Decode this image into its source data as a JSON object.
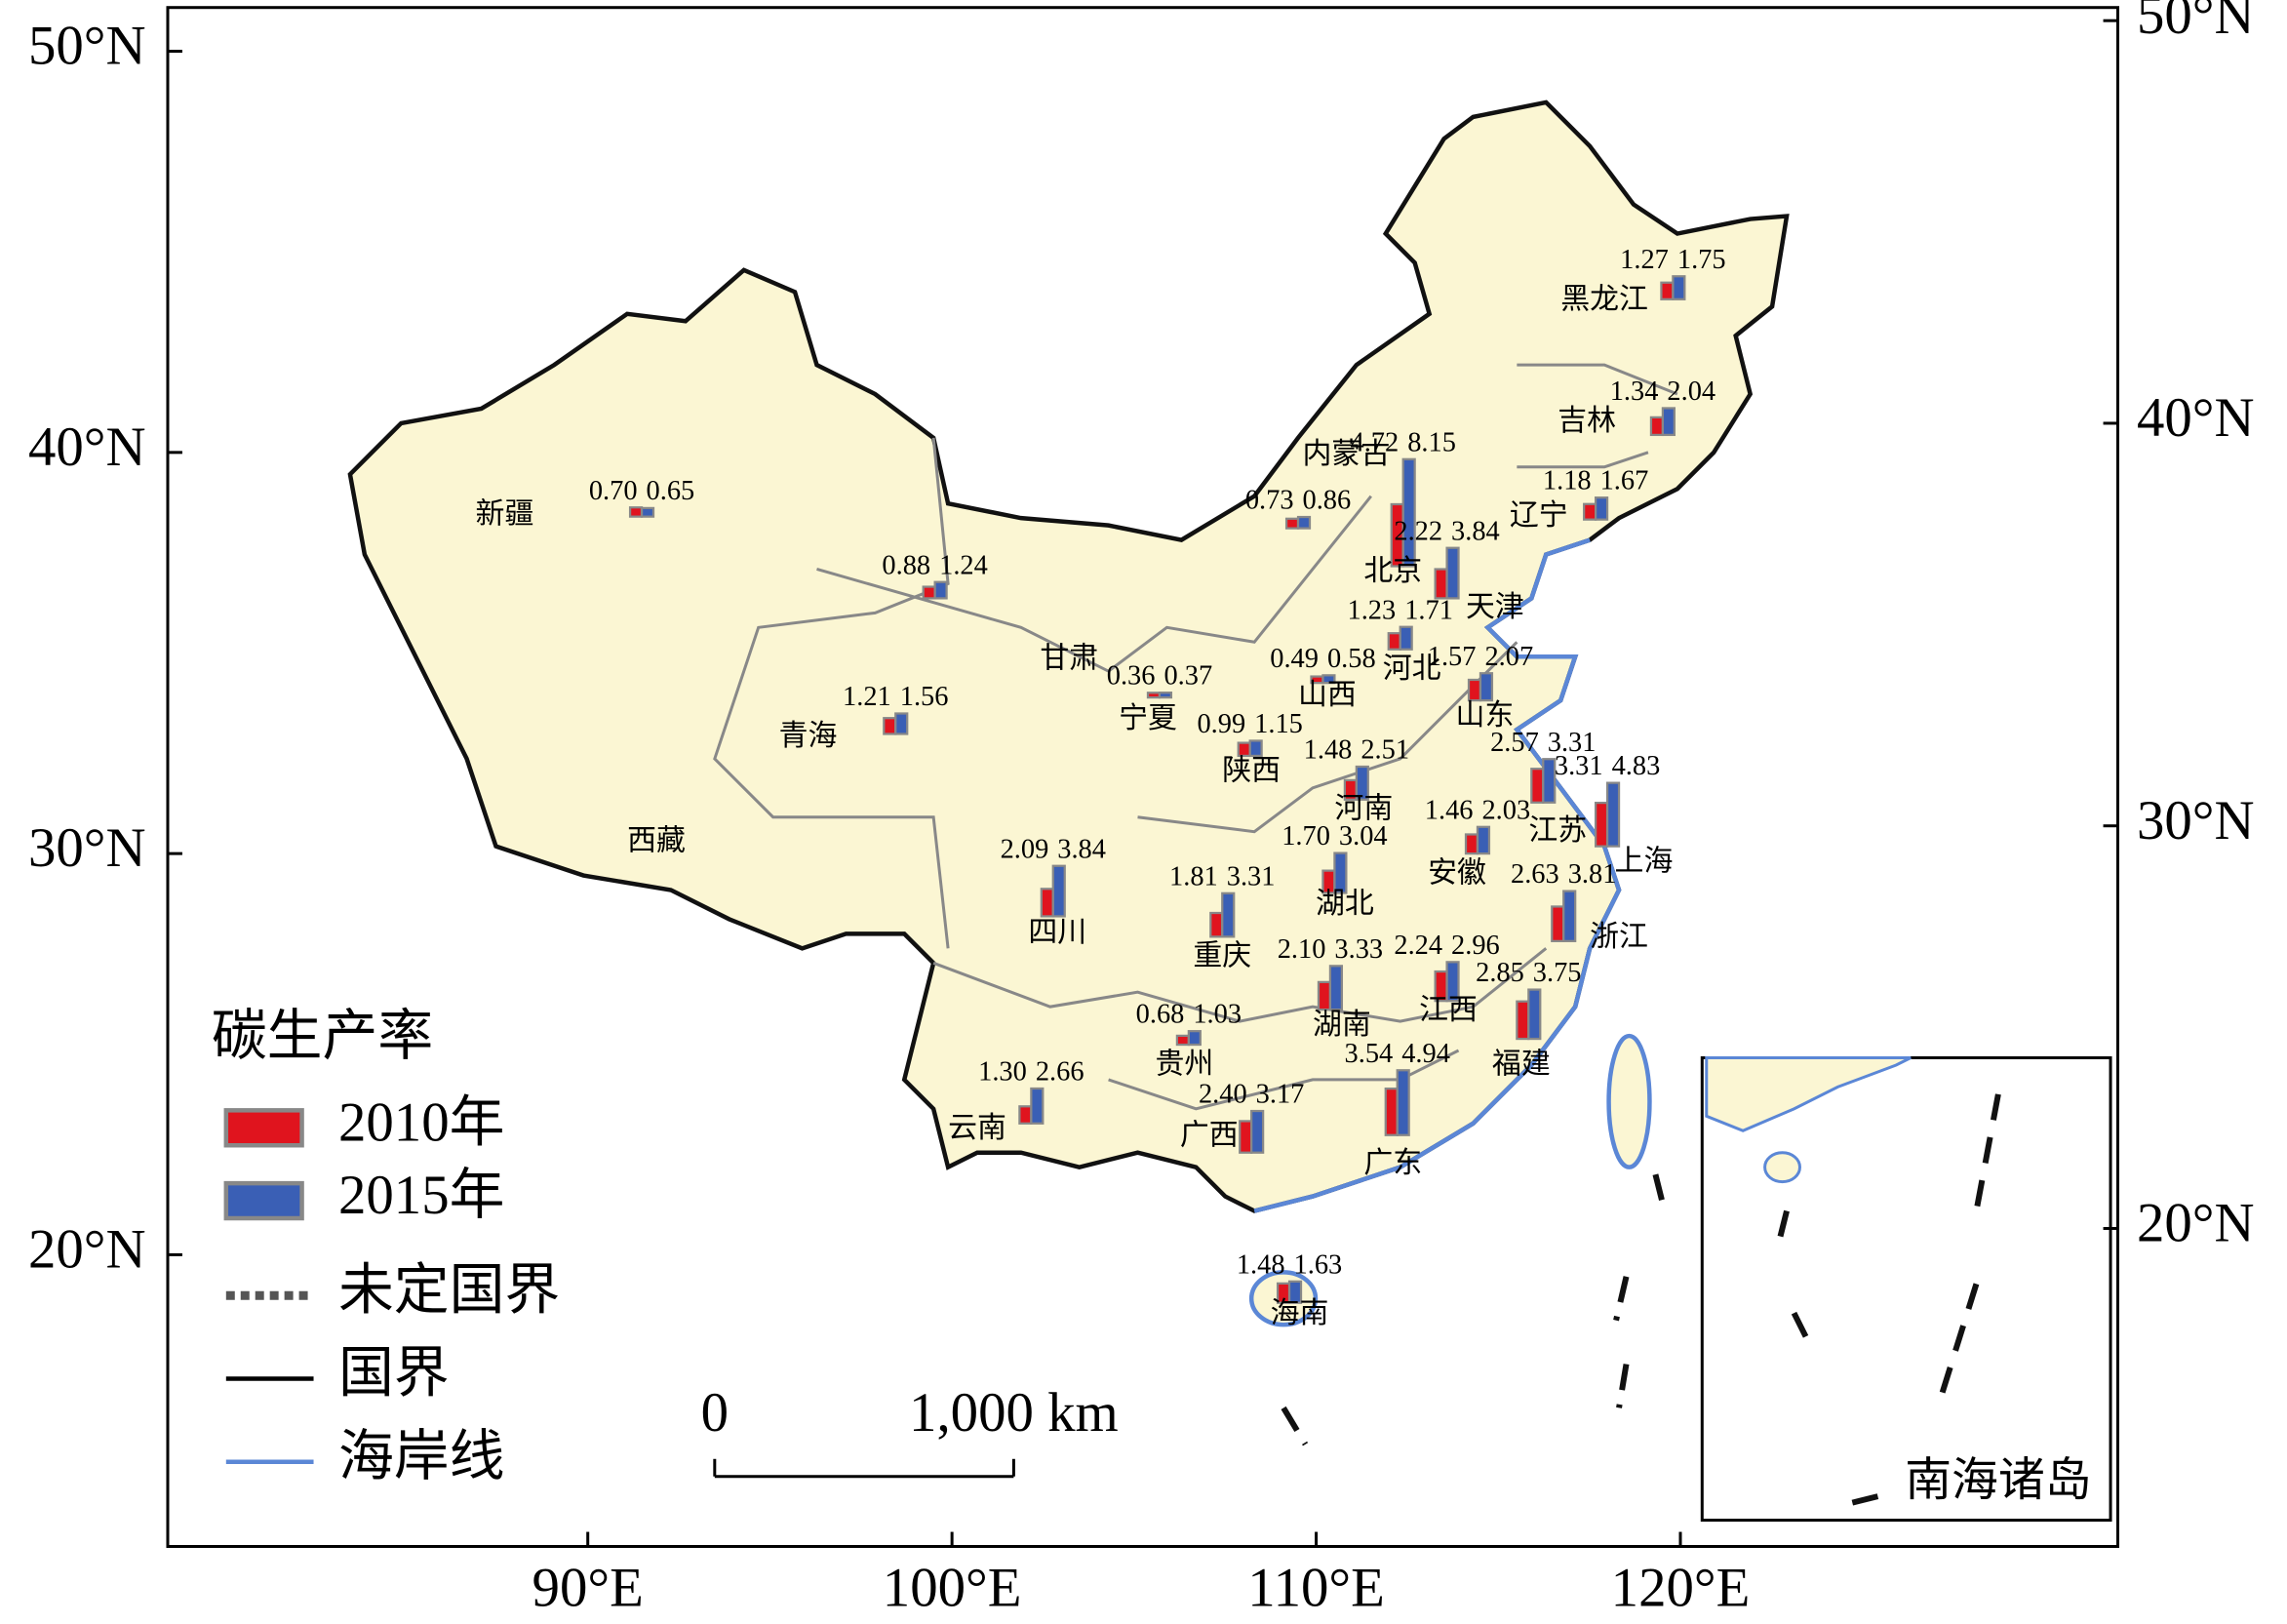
{
  "chart_data": {
    "type": "bar",
    "title": "碳生产率",
    "categories": [
      "黑龙江",
      "吉林",
      "辽宁",
      "内蒙古",
      "北京",
      "天津",
      "河北",
      "山西",
      "山东",
      "宁夏",
      "陕西",
      "甘肃",
      "新疆",
      "青海",
      "西藏",
      "河南",
      "江苏",
      "上海",
      "安徽",
      "湖北",
      "浙江",
      "四川",
      "重庆",
      "湖南",
      "江西",
      "福建",
      "贵州",
      "云南",
      "广西",
      "广东",
      "海南"
    ],
    "series": [
      {
        "name": "2010年",
        "color": "#e0141e",
        "values": [
          1.27,
          1.34,
          1.18,
          0.73,
          4.72,
          2.22,
          1.23,
          0.49,
          1.57,
          0.36,
          0.99,
          0.88,
          0.7,
          1.21,
          null,
          1.48,
          2.57,
          3.31,
          1.46,
          1.7,
          2.63,
          2.09,
          1.81,
          2.1,
          2.24,
          2.85,
          0.68,
          1.3,
          2.4,
          3.54,
          1.48
        ],
        "value_labels": [
          "1.27",
          "1.34",
          "1.18",
          "0.73",
          "4.72",
          "2.22",
          "1.23",
          "0.49",
          "1.57",
          "0.36",
          "0.99",
          "0.88",
          "0.70",
          "1.21",
          null,
          "1.48",
          "2.57",
          "3.31",
          "1.46",
          "1.70",
          "2.63",
          "2.09",
          "1.81",
          "2.10",
          "2.24",
          "2.85",
          "0.68",
          "1.30",
          "2.40",
          "3.54",
          "1.48"
        ]
      },
      {
        "name": "2015年",
        "color": "#3a5fb5",
        "values": [
          1.75,
          2.04,
          1.67,
          0.86,
          8.15,
          3.84,
          1.71,
          0.58,
          2.07,
          0.37,
          1.15,
          1.24,
          0.65,
          1.56,
          null,
          2.51,
          3.31,
          4.83,
          2.03,
          3.04,
          3.81,
          3.84,
          3.31,
          3.33,
          2.96,
          3.75,
          1.03,
          2.66,
          3.17,
          4.94,
          1.63
        ],
        "value_labels": [
          "1.75",
          "2.04",
          "1.67",
          "0.86",
          "8.15",
          "3.84",
          "1.71",
          "0.58",
          "2.07",
          "0.37",
          "1.15",
          "1.24",
          "0.65",
          "1.56",
          null,
          "2.51",
          "3.31",
          "4.83",
          "2.03",
          "3.04",
          "3.81",
          "3.84",
          "3.31",
          "3.33",
          "2.96",
          "3.75",
          "1.03",
          "2.66",
          "3.17",
          "4.94",
          "1.63"
        ]
      }
    ],
    "lat_ticks": [
      {
        "value": 50,
        "label": "50°N"
      },
      {
        "value": 40,
        "label": "40°N"
      },
      {
        "value": 30,
        "label": "30°N"
      },
      {
        "value": 20,
        "label": "20°N"
      }
    ],
    "lon_ticks": [
      {
        "value": 90,
        "label": "90°E"
      },
      {
        "value": 100,
        "label": "100°E"
      },
      {
        "value": 110,
        "label": "110°E"
      },
      {
        "value": 120,
        "label": "120°E"
      }
    ],
    "legend_lines": [
      "未定国界",
      "国界",
      "海岸线"
    ],
    "scale_bar": [
      "0",
      "1,000 km"
    ],
    "inset_label": "南海诸岛"
  }
}
